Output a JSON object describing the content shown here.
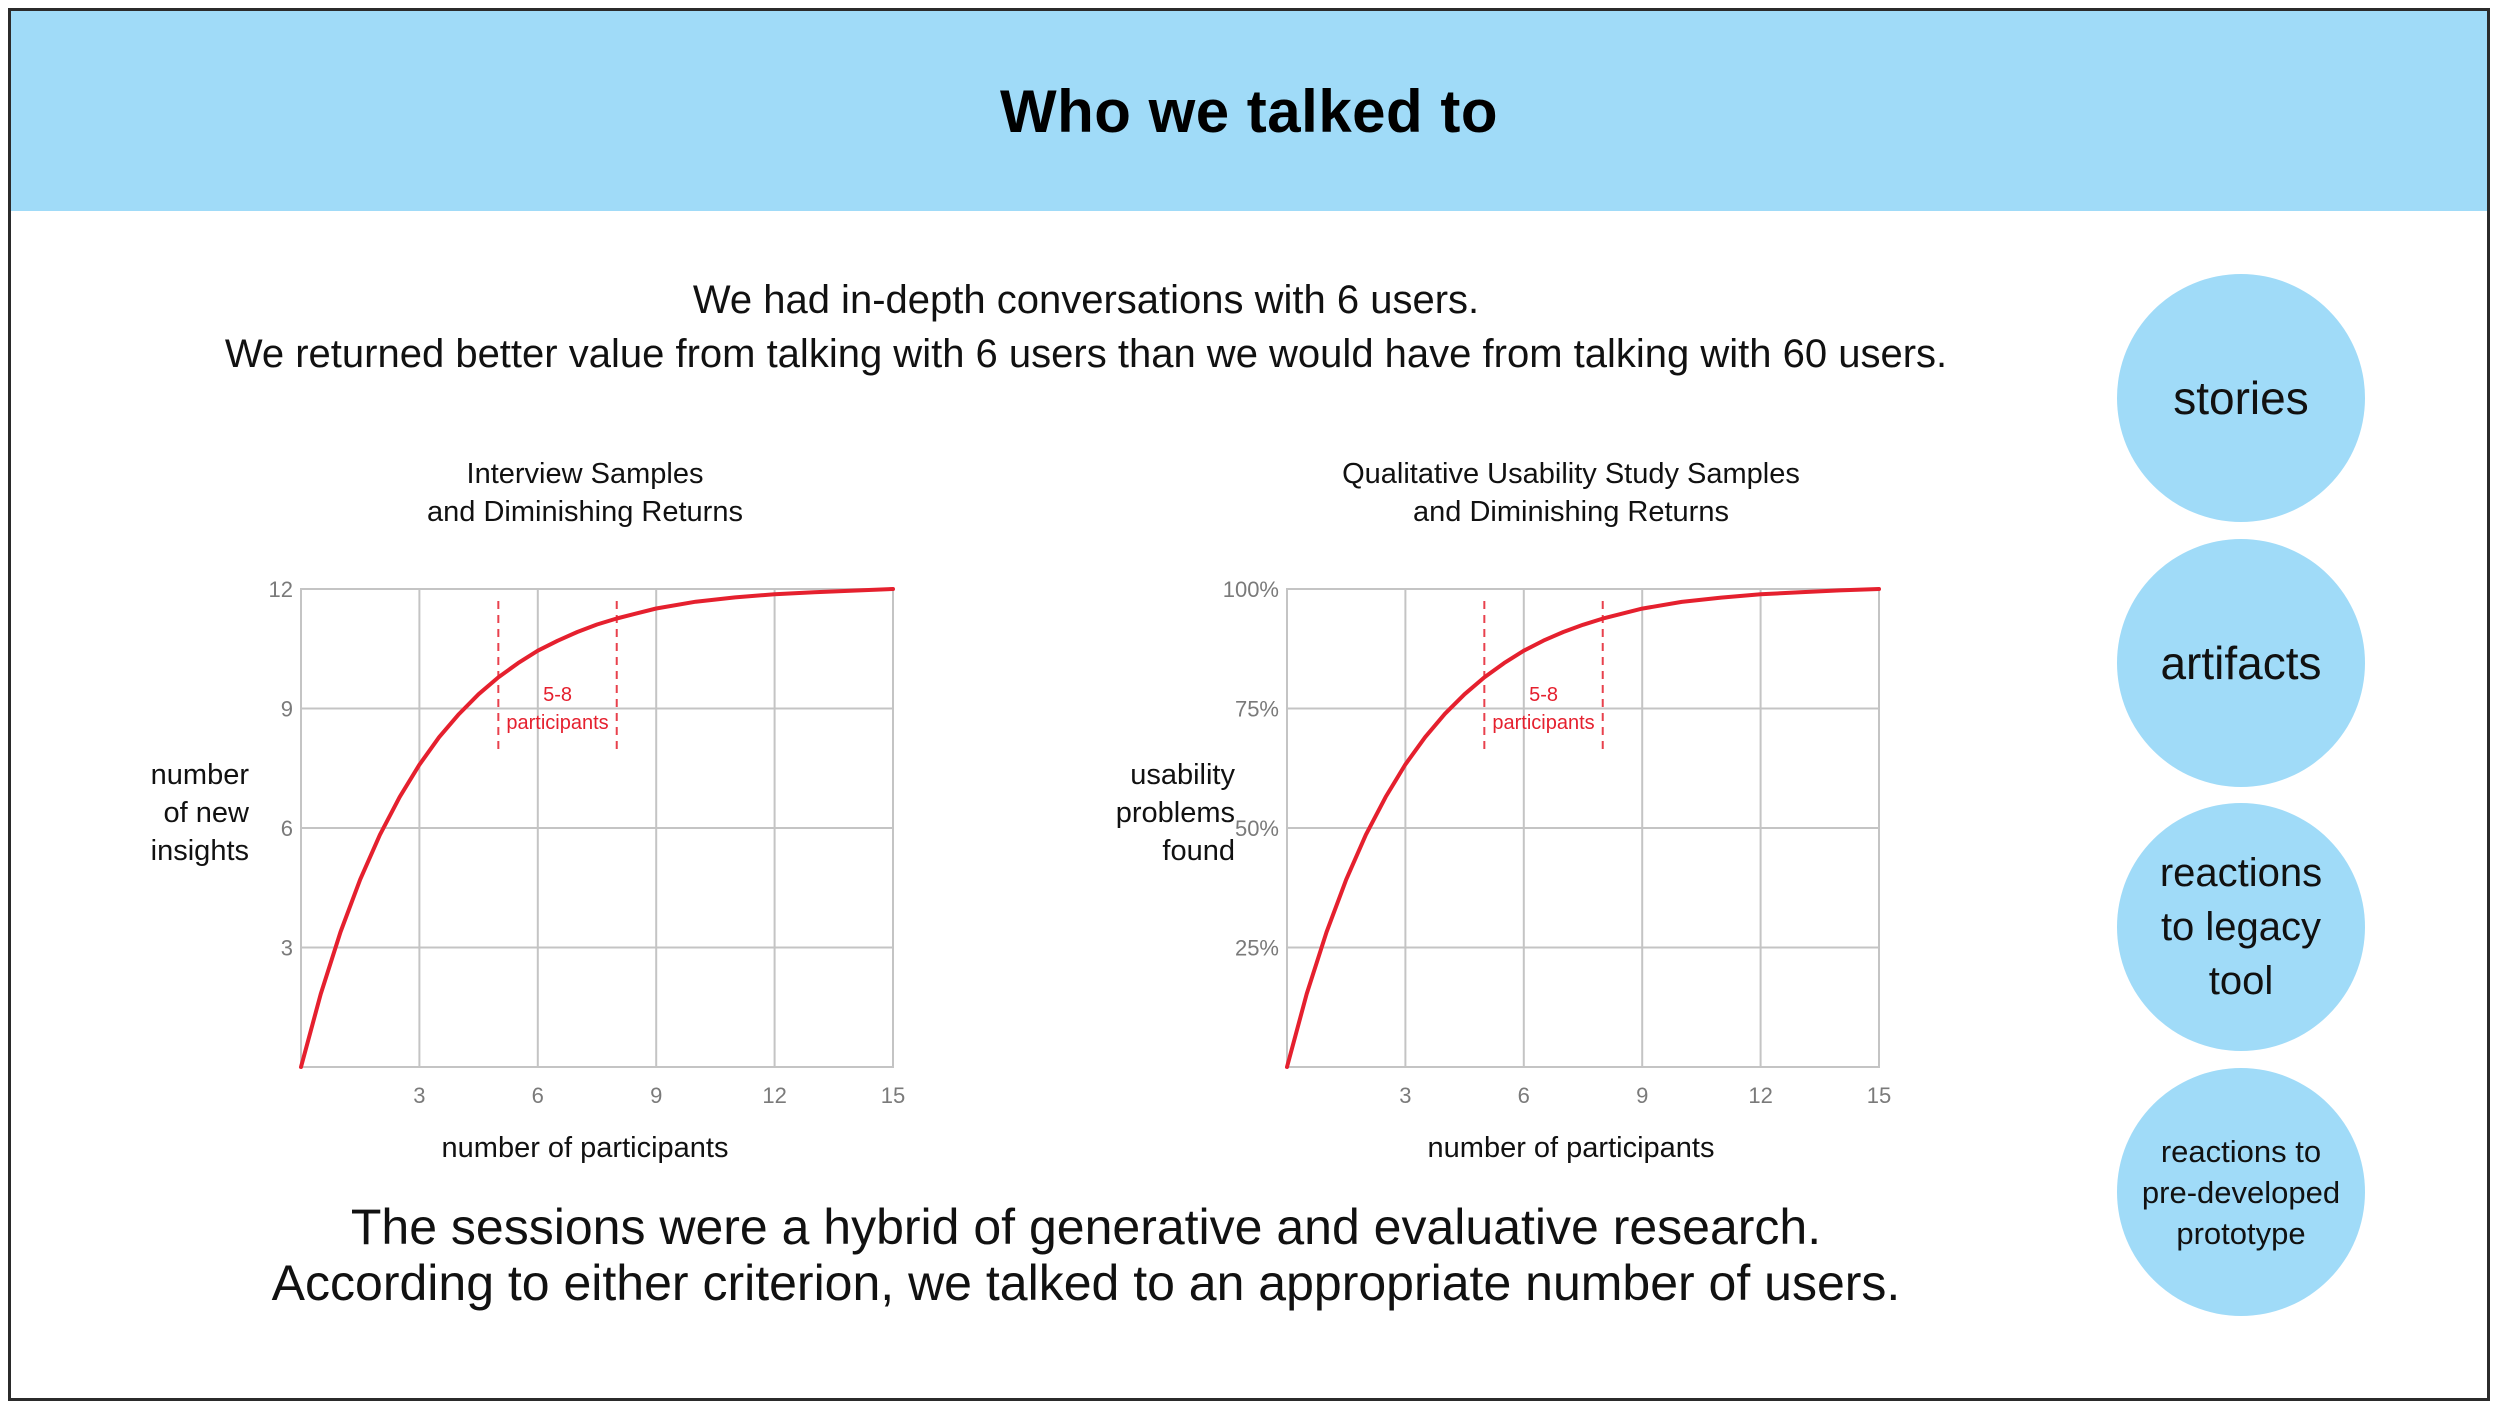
{
  "header": {
    "title": "Who we talked to"
  },
  "intro": {
    "line1": "We had in-depth conversations with 6 users.",
    "line2": "We returned better value from talking with 6 users than we would have from talking with 60 users."
  },
  "outro": {
    "line1": "The sessions were a hybrid of generative and evaluative research.",
    "line2": "According to either criterion, we talked to an appropriate number of users."
  },
  "bubbles": [
    {
      "label": "stories"
    },
    {
      "label": "artifacts"
    },
    {
      "label": "reactions to legacy tool"
    },
    {
      "label": "reactions to pre-developed prototype"
    }
  ],
  "colors": {
    "banner": "#a0dbf8",
    "bubble": "#a0dbf8",
    "curve": "#e5202e",
    "grid": "#c4c4c4"
  },
  "chart_data": [
    {
      "type": "line",
      "title_lines": [
        "Interview Samples",
        "and Diminishing Returns"
      ],
      "xlabel": "number of participants",
      "ylabel_lines": [
        "number",
        "of new",
        "insights"
      ],
      "xlim": [
        0,
        15
      ],
      "ylim": [
        0,
        12
      ],
      "xticks": [
        3,
        6,
        9,
        12,
        15
      ],
      "yticks": [
        3,
        6,
        9,
        12
      ],
      "ytick_labels": [
        "3",
        "6",
        "9",
        "12"
      ],
      "grid": true,
      "series": [
        {
          "x": [
            0,
            0.5,
            1,
            1.5,
            2,
            2.5,
            3,
            3.5,
            4,
            4.5,
            5,
            5.5,
            6,
            6.5,
            7,
            7.5,
            8,
            9,
            10,
            11,
            12,
            13,
            14,
            15
          ],
          "y": [
            0,
            1.83,
            3.39,
            4.71,
            5.83,
            6.78,
            7.59,
            8.28,
            8.86,
            9.36,
            9.78,
            10.14,
            10.45,
            10.7,
            10.92,
            11.11,
            11.26,
            11.51,
            11.68,
            11.79,
            11.87,
            11.92,
            11.96,
            12
          ]
        }
      ],
      "annotation": {
        "x_range": [
          5,
          8
        ],
        "label_lines": [
          "5-8",
          "participants"
        ]
      }
    },
    {
      "type": "line",
      "title_lines": [
        "Qualitative Usability Study Samples",
        "and Diminishing Returns"
      ],
      "xlabel": "number of participants",
      "ylabel_lines": [
        "usability",
        "problems",
        "found"
      ],
      "xlim": [
        0,
        15
      ],
      "ylim": [
        0,
        100
      ],
      "xticks": [
        3,
        6,
        9,
        12,
        15
      ],
      "yticks": [
        25,
        50,
        75,
        100
      ],
      "ytick_labels": [
        "25%",
        "50%",
        "75%",
        "100%"
      ],
      "grid": true,
      "series": [
        {
          "x": [
            0,
            0.5,
            1,
            1.5,
            2,
            2.5,
            3,
            3.5,
            4,
            4.5,
            5,
            5.5,
            6,
            6.5,
            7,
            7.5,
            8,
            9,
            10,
            11,
            12,
            13,
            14,
            15
          ],
          "y": [
            0,
            15.3,
            28.2,
            39.2,
            48.6,
            56.5,
            63.3,
            69,
            73.9,
            78,
            81.5,
            84.5,
            87.1,
            89.2,
            91,
            92.5,
            93.8,
            95.9,
            97.3,
            98.2,
            98.9,
            99.3,
            99.7,
            100
          ]
        }
      ],
      "annotation": {
        "x_range": [
          5,
          8
        ],
        "label_lines": [
          "5-8",
          "participants"
        ]
      }
    }
  ]
}
